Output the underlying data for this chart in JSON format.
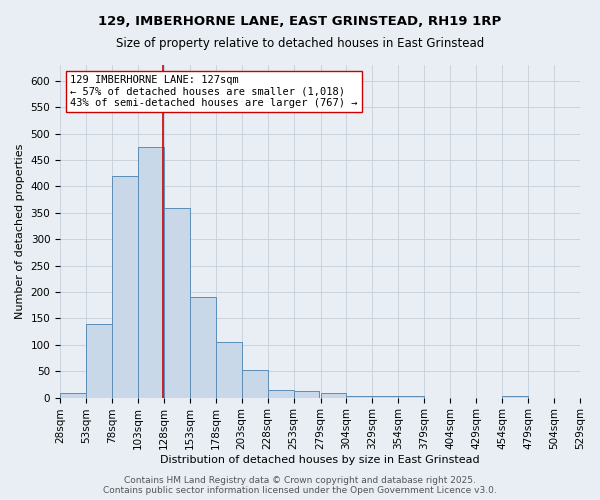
{
  "title_line1": "129, IMBERHORNE LANE, EAST GRINSTEAD, RH19 1RP",
  "title_line2": "Size of property relative to detached houses in East Grinstead",
  "xlabel": "Distribution of detached houses by size in East Grinstead",
  "ylabel": "Number of detached properties",
  "bin_edges": [
    28,
    53,
    78,
    103,
    128,
    153,
    178,
    203,
    228,
    253,
    279,
    304,
    329,
    354,
    379,
    404,
    429,
    454,
    479,
    504,
    529
  ],
  "bar_heights": [
    8,
    140,
    420,
    475,
    360,
    190,
    105,
    53,
    15,
    13,
    9,
    3,
    3,
    3,
    0,
    0,
    0,
    3,
    0,
    0
  ],
  "bar_color": "#c8d8e8",
  "bar_edge_color": "#5b8db8",
  "property_size": 127,
  "red_line_color": "#cc0000",
  "annotation_line1": "129 IMBERHORNE LANE: 127sqm",
  "annotation_line2": "← 57% of detached houses are smaller (1,018)",
  "annotation_line3": "43% of semi-detached houses are larger (767) →",
  "annotation_box_color": "#ffffff",
  "annotation_box_edge_color": "#cc0000",
  "ylim": [
    0,
    630
  ],
  "yticks": [
    0,
    50,
    100,
    150,
    200,
    250,
    300,
    350,
    400,
    450,
    500,
    550,
    600
  ],
  "grid_color": "#c5d0dc",
  "background_color": "#e8eef4",
  "footer_line1": "Contains HM Land Registry data © Crown copyright and database right 2025.",
  "footer_line2": "Contains public sector information licensed under the Open Government Licence v3.0.",
  "title_fontsize": 9.5,
  "subtitle_fontsize": 8.5,
  "axis_label_fontsize": 8,
  "tick_fontsize": 7.5,
  "annotation_fontsize": 7.5,
  "footer_fontsize": 6.5
}
